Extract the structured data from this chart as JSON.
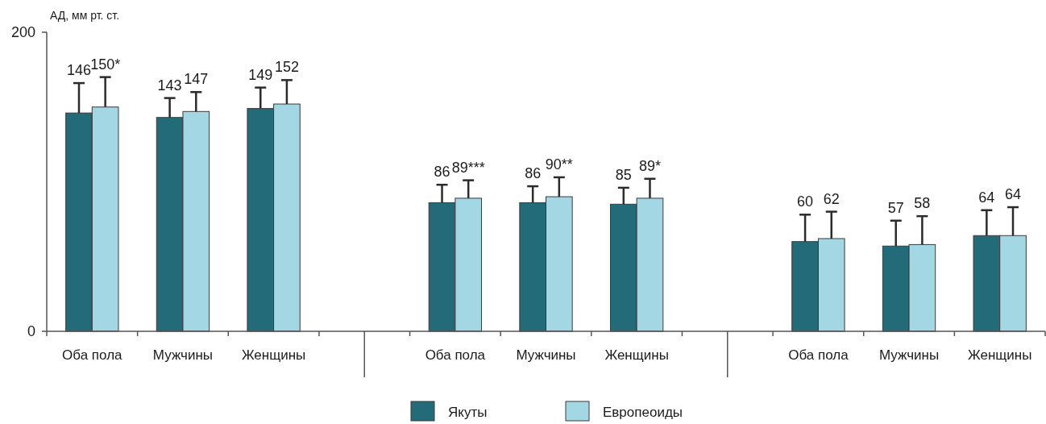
{
  "chart_data": {
    "type": "bar",
    "ylabel": "АД, мм рт. ст.",
    "categories": [
      "Оба пола",
      "Мужчины",
      "Женщины",
      null,
      "Оба пола",
      "Мужчины",
      "Женщины",
      null,
      "Оба пола",
      "Мужчины",
      "Женщины"
    ],
    "series": [
      {
        "name": "Якуты",
        "color": "#236b78",
        "values": [
          146,
          143,
          149,
          null,
          86,
          86,
          85,
          null,
          60,
          57,
          64
        ],
        "errors": [
          [
            146,
            166
          ],
          [
            143,
            156
          ],
          [
            149,
            163
          ],
          null,
          [
            86,
            98
          ],
          [
            86,
            97
          ],
          [
            85,
            96
          ],
          null,
          [
            60,
            78
          ],
          [
            57,
            74
          ],
          [
            64,
            81
          ]
        ],
        "value_labels": [
          "146",
          "143",
          "149",
          null,
          "86",
          "86",
          "85",
          null,
          "60",
          "57",
          "64"
        ]
      },
      {
        "name": "Европеоиды",
        "color": "#a3d7e4",
        "values": [
          150,
          147,
          152,
          null,
          89,
          90,
          89,
          null,
          62,
          58,
          64
        ],
        "errors": [
          [
            150,
            170
          ],
          [
            147,
            160
          ],
          [
            152,
            168
          ],
          null,
          [
            89,
            101
          ],
          [
            90,
            103
          ],
          [
            89,
            102
          ],
          null,
          [
            62,
            80
          ],
          [
            58,
            77
          ],
          [
            64,
            83
          ]
        ],
        "value_labels": [
          "150*",
          "147",
          "152",
          null,
          "89***",
          "90**",
          "89*",
          null,
          "62",
          "58",
          "64"
        ]
      }
    ],
    "ylim": [
      0,
      200
    ],
    "yticks": [
      0,
      200
    ],
    "legend": "bottom"
  }
}
